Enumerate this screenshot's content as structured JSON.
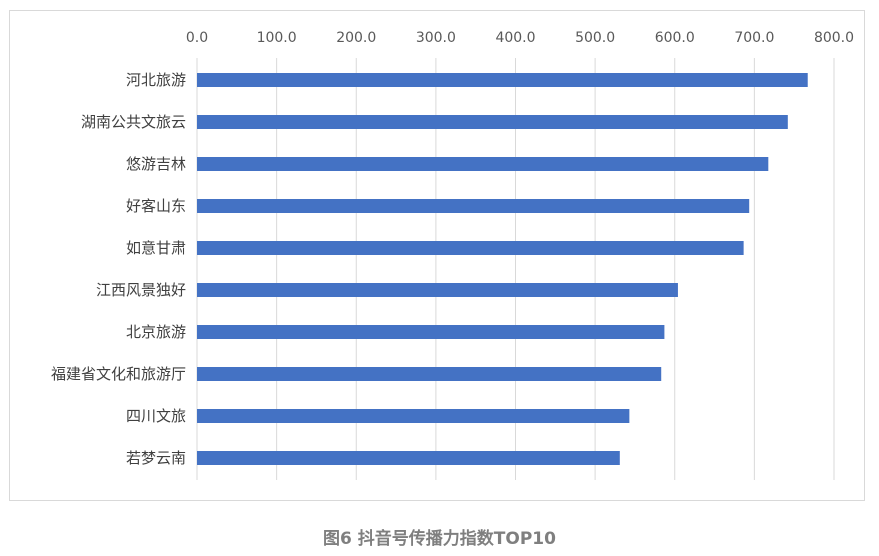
{
  "caption": "图6 抖音号传播力指数TOP10",
  "chart_data": {
    "type": "bar",
    "orientation": "horizontal",
    "categories": [
      "河北旅游",
      "湖南公共文旅云",
      "悠游吉林",
      "好客山东",
      "如意甘肃",
      "江西风景独好",
      "北京旅游",
      "福建省文化和旅游厅",
      "四川文旅",
      "若梦云南"
    ],
    "values": [
      767.0,
      742.0,
      717.5,
      693.5,
      686.5,
      604.0,
      587.0,
      583.0,
      543.0,
      531.0
    ],
    "xlim": [
      0,
      800
    ],
    "x_ticks": [
      "0.0",
      "100.0",
      "200.0",
      "300.0",
      "400.0",
      "500.0",
      "600.0",
      "700.0",
      "800.0"
    ],
    "x_axis_position": "top",
    "grid": true,
    "bar_color": "#4472c4",
    "title": "",
    "xlabel": "",
    "ylabel": ""
  }
}
